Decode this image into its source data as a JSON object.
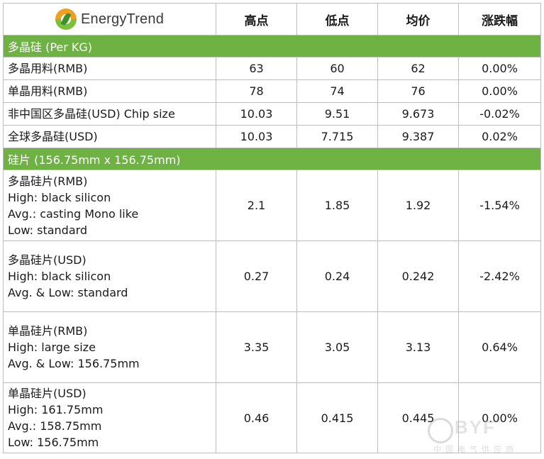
{
  "logo": {
    "text": "EnergyTrend"
  },
  "headers": [
    "高点",
    "低点",
    "均价",
    "涨跌幅"
  ],
  "sections": [
    {
      "title": "多晶硅 (Per KG)",
      "rows": [
        {
          "lines": [
            "多晶用料(RMB)"
          ],
          "high": "63",
          "low": "60",
          "avg": "62",
          "change": "0.00%"
        },
        {
          "lines": [
            "单晶用料(RMB)"
          ],
          "high": "78",
          "low": "74",
          "avg": "76",
          "change": "0.00%"
        },
        {
          "lines": [
            "非中国区多晶硅(USD) Chip size"
          ],
          "high": "10.03",
          "low": "9.51",
          "avg": "9.673",
          "change": "-0.02%"
        },
        {
          "lines": [
            "全球多晶硅(USD)"
          ],
          "high": "10.03",
          "low": "7.715",
          "avg": "9.387",
          "change": "0.02%"
        }
      ]
    },
    {
      "title": "硅片 (156.75mm x 156.75mm)",
      "rows": [
        {
          "lines": [
            "多晶硅片(RMB)",
            "High: black silicon",
            "Avg.: casting Mono like",
            "Low: standard"
          ],
          "high": "2.1",
          "low": "1.85",
          "avg": "1.92",
          "change": "-1.54%"
        },
        {
          "lines": [
            "多晶硅片(USD)",
            "High: black silicon",
            "Avg. & Low: standard"
          ],
          "high": "0.27",
          "low": "0.24",
          "avg": "0.242",
          "change": "-2.42%"
        },
        {
          "lines": [
            "单晶硅片(RMB)",
            "High: large size",
            "Avg. & Low: 156.75mm"
          ],
          "high": "3.35",
          "low": "3.05",
          "avg": "3.13",
          "change": "0.64%"
        },
        {
          "lines": [
            "单晶硅片(USD)",
            "High: 161.75mm",
            "Avg.: 158.75mm",
            "Low: 156.75mm"
          ],
          "high": "0.46",
          "low": "0.415",
          "avg": "0.445",
          "change": "0.00%"
        }
      ]
    }
  ],
  "watermark": {
    "brand": "BYF",
    "sub": "中国电气供应商"
  }
}
